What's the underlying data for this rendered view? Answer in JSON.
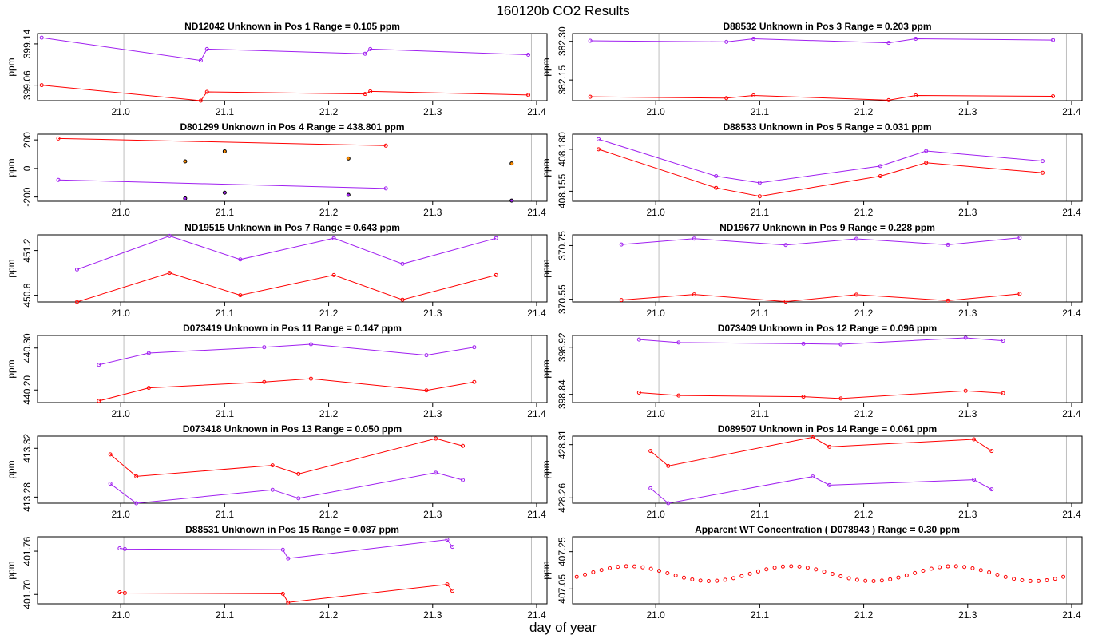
{
  "figure": {
    "title": "160120b  CO2 Results",
    "xlabel": "day of year"
  },
  "chart_data": [
    {
      "type": "line",
      "title": "ND12042    Unknown in Pos 1         Range =  0.105 ppm",
      "ylabel": "ppm",
      "xlim": [
        20.92,
        21.41
      ],
      "ylim": [
        399.03,
        399.16
      ],
      "yticks": [
        399.06,
        399.14
      ],
      "ytick_labels": [
        "399.06",
        "399.14"
      ],
      "xticks": [
        21.0,
        21.1,
        21.2,
        21.3,
        21.4
      ],
      "xtick_labels": [
        "21.0",
        "21.1",
        "21.2",
        "21.3",
        "21.4"
      ],
      "vlines": [
        21.003,
        21.395
      ],
      "series": [
        {
          "name": "purple",
          "color": "#a020f0",
          "connect": true,
          "x": [
            20.924,
            21.077,
            21.083,
            21.235,
            21.24,
            21.392
          ],
          "y": [
            399.152,
            399.108,
            399.13,
            399.121,
            399.13,
            399.119
          ]
        },
        {
          "name": "red",
          "color": "#ff0000",
          "connect": true,
          "x": [
            20.924,
            21.077,
            21.083,
            21.235,
            21.24,
            21.392
          ],
          "y": [
            399.06,
            399.03,
            399.047,
            399.043,
            399.048,
            399.041
          ]
        }
      ]
    },
    {
      "type": "line",
      "title": "D88532    Unknown in Pos 3         Range =  0.203 ppm",
      "ylabel": "ppm",
      "xlim": [
        20.92,
        21.41
      ],
      "ylim": [
        382.07,
        382.33
      ],
      "yticks": [
        382.15,
        382.3
      ],
      "ytick_labels": [
        "382.15",
        "382.30"
      ],
      "xticks": [
        21.0,
        21.1,
        21.2,
        21.3,
        21.4
      ],
      "xtick_labels": [
        "21.0",
        "21.1",
        "21.2",
        "21.3",
        "21.4"
      ],
      "vlines": [
        21.003,
        21.395
      ],
      "series": [
        {
          "name": "purple",
          "color": "#a020f0",
          "connect": true,
          "x": [
            20.937,
            21.068,
            21.094,
            21.224,
            21.25,
            21.382
          ],
          "y": [
            382.302,
            382.298,
            382.31,
            382.294,
            382.31,
            382.305
          ]
        },
        {
          "name": "red",
          "color": "#ff0000",
          "connect": true,
          "x": [
            20.937,
            21.068,
            21.094,
            21.224,
            21.25,
            21.382
          ],
          "y": [
            382.085,
            382.08,
            382.09,
            382.072,
            382.09,
            382.087
          ]
        }
      ]
    },
    {
      "type": "line",
      "title": "D801299    Unknown in Pos 4         Range = 438.801 ppm",
      "ylabel": "ppm",
      "xlim": [
        20.92,
        21.41
      ],
      "ylim": [
        -230,
        240
      ],
      "yticks": [
        -200,
        0,
        200
      ],
      "ytick_labels": [
        "-200",
        "0",
        "200"
      ],
      "xticks": [
        21.0,
        21.1,
        21.2,
        21.3,
        21.4
      ],
      "xtick_labels": [
        "21.0",
        "21.1",
        "21.2",
        "21.3",
        "21.4"
      ],
      "vlines": [
        21.003,
        21.395
      ],
      "series": [
        {
          "name": "red",
          "color": "#ff0000",
          "connect": true,
          "x": [
            20.94,
            21.255
          ],
          "y": [
            210,
            160
          ]
        },
        {
          "name": "purple",
          "color": "#a020f0",
          "connect": true,
          "x": [
            20.94,
            21.255
          ],
          "y": [
            -80,
            -140
          ]
        },
        {
          "name": "black-orange",
          "color": "#000000",
          "fill": "#ff8c00",
          "connect": false,
          "x": [
            21.062,
            21.1,
            21.219,
            21.376
          ],
          "y": [
            50,
            120,
            70,
            35
          ]
        },
        {
          "name": "black-purple",
          "color": "#000000",
          "fill": "#a020f0",
          "connect": false,
          "x": [
            21.062,
            21.1,
            21.219,
            21.376
          ],
          "y": [
            -210,
            -170,
            -185,
            -225
          ]
        }
      ]
    },
    {
      "type": "line",
      "title": "D88533    Unknown in Pos 5         Range =  0.031 ppm",
      "ylabel": "ppm",
      "xlim": [
        20.92,
        21.41
      ],
      "ylim": [
        408.149,
        408.189
      ],
      "yticks": [
        408.155,
        408.18
      ],
      "ytick_labels": [
        "408.155",
        "408.180"
      ],
      "xticks": [
        21.0,
        21.1,
        21.2,
        21.3,
        21.4
      ],
      "xtick_labels": [
        "21.0",
        "21.1",
        "21.2",
        "21.3",
        "21.4"
      ],
      "vlines": [
        21.003,
        21.395
      ],
      "series": [
        {
          "name": "purple",
          "color": "#a020f0",
          "connect": true,
          "x": [
            20.945,
            21.058,
            21.1,
            21.216,
            21.26,
            21.372
          ],
          "y": [
            408.186,
            408.164,
            408.16,
            408.17,
            408.179,
            408.173
          ]
        },
        {
          "name": "red",
          "color": "#ff0000",
          "connect": true,
          "x": [
            20.945,
            21.058,
            21.1,
            21.216,
            21.26,
            21.372
          ],
          "y": [
            408.18,
            408.157,
            408.152,
            408.164,
            408.172,
            408.166
          ]
        }
      ]
    },
    {
      "type": "line",
      "title": "ND19515    Unknown in Pos 7         Range =  0.643 ppm",
      "ylabel": "ppm",
      "xlim": [
        20.92,
        21.41
      ],
      "ylim": [
        450.74,
        451.34
      ],
      "yticks": [
        450.8,
        451.2
      ],
      "ytick_labels": [
        "450.8",
        "451.2"
      ],
      "xticks": [
        21.0,
        21.1,
        21.2,
        21.3,
        21.4
      ],
      "xtick_labels": [
        "21.0",
        "21.1",
        "21.2",
        "21.3",
        "21.4"
      ],
      "vlines": [
        21.003,
        21.395
      ],
      "series": [
        {
          "name": "purple",
          "color": "#a020f0",
          "connect": true,
          "x": [
            20.958,
            21.047,
            21.115,
            21.205,
            21.271,
            21.361
          ],
          "y": [
            451.03,
            451.33,
            451.12,
            451.31,
            451.08,
            451.31
          ]
        },
        {
          "name": "red",
          "color": "#ff0000",
          "connect": true,
          "x": [
            20.958,
            21.047,
            21.115,
            21.205,
            21.271,
            21.361
          ],
          "y": [
            450.74,
            451.0,
            450.8,
            450.98,
            450.76,
            450.98
          ]
        }
      ]
    },
    {
      "type": "line",
      "title": "ND19677    Unknown in Pos 9         Range =  0.228 ppm",
      "ylabel": "ppm",
      "xlim": [
        20.92,
        21.41
      ],
      "ylim": [
        370.54,
        370.79
      ],
      "yticks": [
        370.55,
        370.75
      ],
      "ytick_labels": [
        "370.55",
        "370.75"
      ],
      "xticks": [
        21.0,
        21.1,
        21.2,
        21.3,
        21.4
      ],
      "xtick_labels": [
        "21.0",
        "21.1",
        "21.2",
        "21.3",
        "21.4"
      ],
      "vlines": [
        21.003,
        21.395
      ],
      "series": [
        {
          "name": "purple",
          "color": "#a020f0",
          "connect": true,
          "x": [
            20.967,
            21.037,
            21.125,
            21.193,
            21.281,
            21.35
          ],
          "y": [
            370.754,
            370.776,
            370.752,
            370.775,
            370.753,
            370.779
          ]
        },
        {
          "name": "red",
          "color": "#ff0000",
          "connect": true,
          "x": [
            20.967,
            21.037,
            21.125,
            21.193,
            21.281,
            21.35
          ],
          "y": [
            370.547,
            370.568,
            370.541,
            370.567,
            370.545,
            370.57
          ]
        }
      ]
    },
    {
      "type": "line",
      "title": "D073419    Unknown in Pos 11         Range =  0.147 ppm",
      "ylabel": "ppm",
      "xlim": [
        20.92,
        21.41
      ],
      "ylim": [
        440.17,
        440.33
      ],
      "yticks": [
        440.2,
        440.3
      ],
      "ytick_labels": [
        "440.20",
        "440.30"
      ],
      "xticks": [
        21.0,
        21.1,
        21.2,
        21.3,
        21.4
      ],
      "xtick_labels": [
        "21.0",
        "21.1",
        "21.2",
        "21.3",
        "21.4"
      ],
      "vlines": [
        21.003,
        21.395
      ],
      "series": [
        {
          "name": "purple",
          "color": "#a020f0",
          "connect": true,
          "x": [
            20.979,
            21.027,
            21.138,
            21.183,
            21.294,
            21.34
          ],
          "y": [
            440.26,
            440.288,
            440.302,
            440.309,
            440.283,
            440.302
          ]
        },
        {
          "name": "red",
          "color": "#ff0000",
          "connect": true,
          "x": [
            20.979,
            21.027,
            21.138,
            21.183,
            21.294,
            21.34
          ],
          "y": [
            440.174,
            440.205,
            440.219,
            440.227,
            440.199,
            440.219
          ]
        }
      ]
    },
    {
      "type": "line",
      "title": "D073409    Unknown in Pos 12         Range =  0.096 ppm",
      "ylabel": "ppm",
      "xlim": [
        20.92,
        21.41
      ],
      "ylim": [
        398.826,
        398.94
      ],
      "yticks": [
        398.84,
        398.92
      ],
      "ytick_labels": [
        "398.84",
        "398.92"
      ],
      "xticks": [
        21.0,
        21.1,
        21.2,
        21.3,
        21.4
      ],
      "xtick_labels": [
        "21.0",
        "21.1",
        "21.2",
        "21.3",
        "21.4"
      ],
      "vlines": [
        21.003,
        21.395
      ],
      "series": [
        {
          "name": "purple",
          "color": "#a020f0",
          "connect": true,
          "x": [
            20.984,
            21.022,
            21.142,
            21.178,
            21.298,
            21.334
          ],
          "y": [
            398.933,
            398.928,
            398.926,
            398.925,
            398.936,
            398.931
          ]
        },
        {
          "name": "red",
          "color": "#ff0000",
          "connect": true,
          "x": [
            20.984,
            21.022,
            21.142,
            21.178,
            21.298,
            21.334
          ],
          "y": [
            398.843,
            398.838,
            398.836,
            398.833,
            398.846,
            398.842
          ]
        }
      ]
    },
    {
      "type": "line",
      "title": "D073418    Unknown in Pos 13         Range =  0.050 ppm",
      "ylabel": "ppm",
      "xlim": [
        20.92,
        21.41
      ],
      "ylim": [
        413.275,
        413.33
      ],
      "yticks": [
        413.28,
        413.32
      ],
      "ytick_labels": [
        "413.28",
        "413.32"
      ],
      "xticks": [
        21.0,
        21.1,
        21.2,
        21.3,
        21.4
      ],
      "xtick_labels": [
        "21.0",
        "21.1",
        "21.2",
        "21.3",
        "21.4"
      ],
      "vlines": [
        21.003,
        21.395
      ],
      "series": [
        {
          "name": "red",
          "color": "#ff0000",
          "connect": true,
          "x": [
            20.99,
            21.015,
            21.146,
            21.171,
            21.303,
            21.329
          ],
          "y": [
            413.315,
            413.297,
            413.306,
            413.299,
            413.328,
            413.322
          ]
        },
        {
          "name": "purple",
          "color": "#a020f0",
          "connect": true,
          "x": [
            20.99,
            21.015,
            21.146,
            21.171,
            21.303,
            21.329
          ],
          "y": [
            413.291,
            413.275,
            413.286,
            413.279,
            413.3,
            413.294
          ]
        }
      ]
    },
    {
      "type": "line",
      "title": "D089507    Unknown in Pos 14         Range =  0.061 ppm",
      "ylabel": "ppm",
      "xlim": [
        20.92,
        21.41
      ],
      "ylim": [
        428.255,
        428.318
      ],
      "yticks": [
        428.26,
        428.31
      ],
      "ytick_labels": [
        "428.26",
        "428.31"
      ],
      "xticks": [
        21.0,
        21.1,
        21.2,
        21.3,
        21.4
      ],
      "xtick_labels": [
        "21.0",
        "21.1",
        "21.2",
        "21.3",
        "21.4"
      ],
      "vlines": [
        21.003,
        21.395
      ],
      "series": [
        {
          "name": "red",
          "color": "#ff0000",
          "connect": true,
          "x": [
            20.995,
            21.012,
            21.151,
            21.167,
            21.306,
            21.323
          ],
          "y": [
            428.304,
            428.29,
            428.317,
            428.308,
            428.315,
            428.304
          ]
        },
        {
          "name": "purple",
          "color": "#a020f0",
          "connect": true,
          "x": [
            20.995,
            21.012,
            21.151,
            21.167,
            21.306,
            21.323
          ],
          "y": [
            428.269,
            428.255,
            428.28,
            428.272,
            428.277,
            428.268
          ]
        }
      ]
    },
    {
      "type": "line",
      "title": "D88531    Unknown in Pos 15         Range =  0.087 ppm",
      "ylabel": "ppm",
      "xlim": [
        20.92,
        21.41
      ],
      "ylim": [
        401.687,
        401.78
      ],
      "yticks": [
        401.7,
        401.76
      ],
      "ytick_labels": [
        "401.70",
        "401.76"
      ],
      "xticks": [
        21.0,
        21.1,
        21.2,
        21.3,
        21.4
      ],
      "xtick_labels": [
        "21.0",
        "21.1",
        "21.2",
        "21.3",
        "21.4"
      ],
      "vlines": [
        21.003,
        21.395
      ],
      "series": [
        {
          "name": "purple",
          "color": "#a020f0",
          "connect": true,
          "x": [
            20.999,
            21.004,
            21.156,
            21.161,
            21.314,
            21.319
          ],
          "y": [
            401.764,
            401.763,
            401.762,
            401.75,
            401.776,
            401.766
          ]
        },
        {
          "name": "red",
          "color": "#ff0000",
          "connect": true,
          "x": [
            20.999,
            21.004,
            21.156,
            21.161,
            21.314,
            21.319
          ],
          "y": [
            401.703,
            401.702,
            401.701,
            401.689,
            401.714,
            401.705
          ]
        }
      ]
    },
    {
      "type": "scatter",
      "title": "Apparent WT Concentration ( D078943 )         Range = 0.30 ppm",
      "ylabel": "ppm",
      "xlim": [
        20.92,
        21.41
      ],
      "ylim": [
        406.97,
        407.33
      ],
      "yticks": [
        407.05,
        407.25
      ],
      "ytick_labels": [
        "407.05",
        "407.25"
      ],
      "xticks": [
        21.0,
        21.1,
        21.2,
        21.3,
        21.4
      ],
      "xtick_labels": [
        "21.0",
        "21.1",
        "21.2",
        "21.3",
        "21.4"
      ],
      "vlines": [
        21.003,
        21.395
      ],
      "wave": {
        "x_start": 20.924,
        "x_end": 21.392,
        "count": 60,
        "mean": 407.132,
        "amplitude": 0.04,
        "period": 0.156,
        "phase_x": 20.974
      }
    }
  ]
}
